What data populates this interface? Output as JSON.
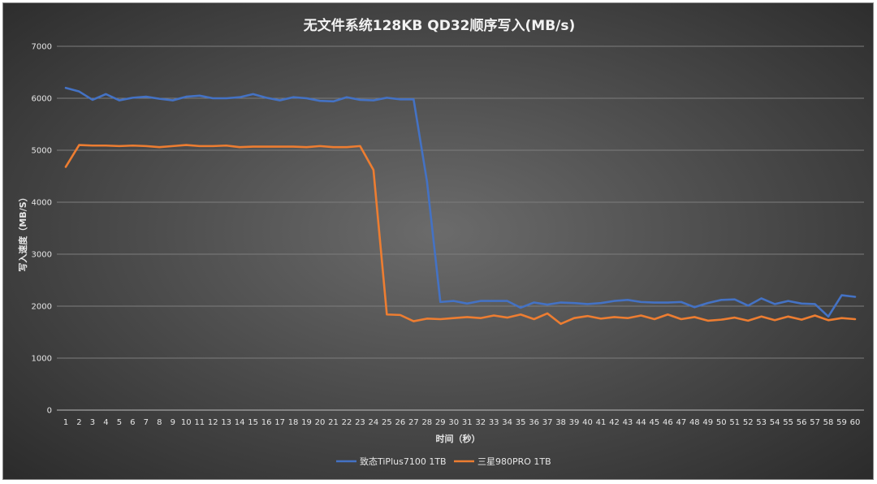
{
  "chart_data": {
    "type": "line",
    "title": "无文件系统128KB QD32顺序写入(MB/s)",
    "xlabel": "时间（秒）",
    "ylabel": "写入速度（MB/S）",
    "ylim": [
      0,
      7000
    ],
    "yticks": [
      0,
      1000,
      2000,
      3000,
      4000,
      5000,
      6000,
      7000
    ],
    "grid": true,
    "legend_position": "bottom",
    "x": [
      1,
      2,
      3,
      4,
      5,
      6,
      7,
      8,
      9,
      10,
      11,
      12,
      13,
      14,
      15,
      16,
      17,
      18,
      19,
      20,
      21,
      22,
      23,
      24,
      25,
      26,
      27,
      28,
      29,
      30,
      31,
      32,
      33,
      34,
      35,
      36,
      37,
      38,
      39,
      40,
      41,
      42,
      43,
      44,
      45,
      46,
      47,
      48,
      49,
      50,
      51,
      52,
      53,
      54,
      55,
      56,
      57,
      58,
      59,
      60
    ],
    "series": [
      {
        "name": "致态TiPlus7100 1TB",
        "color": "#4472c4",
        "values": [
          6200,
          6130,
          5970,
          6080,
          5960,
          6010,
          6030,
          5990,
          5960,
          6030,
          6050,
          6000,
          6000,
          6020,
          6080,
          6010,
          5960,
          6020,
          6000,
          5950,
          5940,
          6020,
          5970,
          5960,
          6010,
          5980,
          5980,
          4400,
          2080,
          2100,
          2050,
          2100,
          2100,
          2100,
          1970,
          2070,
          2030,
          2070,
          2060,
          2040,
          2060,
          2100,
          2120,
          2080,
          2070,
          2070,
          2080,
          1980,
          2060,
          2120,
          2130,
          2010,
          2150,
          2040,
          2100,
          2050,
          2040,
          1800,
          2210,
          2180
        ]
      },
      {
        "name": "三星980PRO 1TB",
        "color": "#ed7d31",
        "values": [
          4680,
          5100,
          5090,
          5090,
          5080,
          5090,
          5080,
          5060,
          5080,
          5100,
          5080,
          5080,
          5090,
          5060,
          5070,
          5070,
          5070,
          5070,
          5060,
          5080,
          5060,
          5060,
          5080,
          4620,
          1840,
          1830,
          1710,
          1760,
          1750,
          1770,
          1790,
          1770,
          1820,
          1780,
          1840,
          1750,
          1860,
          1660,
          1770,
          1810,
          1760,
          1790,
          1770,
          1820,
          1750,
          1840,
          1750,
          1790,
          1720,
          1740,
          1780,
          1720,
          1800,
          1730,
          1800,
          1740,
          1820,
          1730,
          1770,
          1750
        ]
      }
    ]
  }
}
